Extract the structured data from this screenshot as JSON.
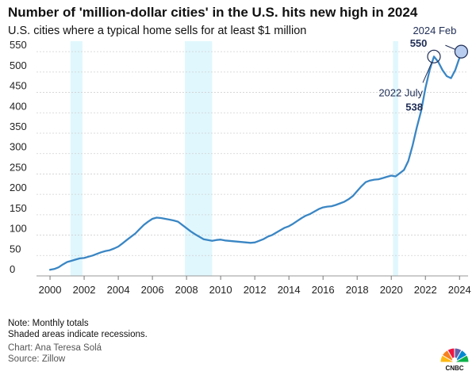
{
  "chart_data": {
    "type": "line",
    "title": "Number of 'million-dollar cities' in the U.S. hits new high in 2024",
    "subtitle": "U.S. cities where a typical home sells for at least $1 million",
    "xlabel": "",
    "ylabel": "",
    "x_tick_labels": [
      "2000",
      "2002",
      "2004",
      "2006",
      "2008",
      "2010",
      "2012",
      "2014",
      "2016",
      "2018",
      "2020",
      "2022",
      "2024"
    ],
    "y_tick_labels": [
      "0",
      "50",
      "100",
      "150",
      "200",
      "250",
      "300",
      "350",
      "400",
      "450",
      "500",
      "550"
    ],
    "xlim": [
      1999.3,
      2024.5
    ],
    "ylim": [
      0,
      560
    ],
    "grid": true,
    "line_color": "#3a86c4",
    "recession_color": "#e0f7fd",
    "recessions": [
      {
        "start": 2001.2,
        "end": 2001.9
      },
      {
        "start": 2007.9,
        "end": 2009.5
      },
      {
        "start": 2020.1,
        "end": 2020.4
      }
    ],
    "series": [
      {
        "name": "Million-dollar cities",
        "x": [
          2000.0,
          2000.25,
          2000.5,
          2000.75,
          2001.0,
          2001.25,
          2001.5,
          2001.75,
          2002.0,
          2002.25,
          2002.5,
          2002.75,
          2003.0,
          2003.25,
          2003.5,
          2003.75,
          2004.0,
          2004.25,
          2004.5,
          2004.75,
          2005.0,
          2005.25,
          2005.5,
          2005.75,
          2006.0,
          2006.25,
          2006.5,
          2006.75,
          2007.0,
          2007.25,
          2007.5,
          2007.75,
          2008.0,
          2008.25,
          2008.5,
          2008.75,
          2009.0,
          2009.25,
          2009.5,
          2009.75,
          2010.0,
          2010.25,
          2010.5,
          2010.75,
          2011.0,
          2011.25,
          2011.5,
          2011.75,
          2012.0,
          2012.25,
          2012.5,
          2012.75,
          2013.0,
          2013.25,
          2013.5,
          2013.75,
          2014.0,
          2014.25,
          2014.5,
          2014.75,
          2015.0,
          2015.25,
          2015.5,
          2015.75,
          2016.0,
          2016.25,
          2016.5,
          2016.75,
          2017.0,
          2017.25,
          2017.5,
          2017.75,
          2018.0,
          2018.25,
          2018.5,
          2018.75,
          2019.0,
          2019.25,
          2019.5,
          2019.75,
          2020.0,
          2020.25,
          2020.5,
          2020.75,
          2021.0,
          2021.25,
          2021.5,
          2021.75,
          2022.0,
          2022.25,
          2022.5,
          2022.75,
          2023.0,
          2023.25,
          2023.5,
          2023.75,
          2024.0,
          2024.1
        ],
        "values": [
          15,
          17,
          21,
          28,
          34,
          37,
          40,
          43,
          44,
          47,
          50,
          54,
          58,
          61,
          63,
          67,
          72,
          80,
          88,
          96,
          104,
          115,
          125,
          133,
          140,
          143,
          142,
          140,
          138,
          136,
          133,
          125,
          117,
          109,
          102,
          96,
          90,
          88,
          86,
          88,
          89,
          87,
          86,
          85,
          84,
          83,
          82,
          81,
          82,
          86,
          90,
          96,
          100,
          106,
          112,
          118,
          122,
          128,
          135,
          142,
          148,
          152,
          158,
          164,
          168,
          170,
          171,
          174,
          178,
          182,
          188,
          196,
          208,
          220,
          230,
          234,
          236,
          237,
          240,
          243,
          246,
          244,
          252,
          260,
          282,
          320,
          365,
          405,
          460,
          505,
          538,
          525,
          505,
          490,
          485,
          505,
          535,
          550
        ]
      }
    ],
    "annotations": [
      {
        "label": "2024 Feb",
        "value": "550",
        "x": 2024.1,
        "y": 550
      },
      {
        "label": "2022 July",
        "value": "538",
        "x": 2022.5,
        "y": 538
      }
    ]
  },
  "notes": {
    "line1": "Note: Monthly totals",
    "line2": "Shaded areas indicate recessions.",
    "credit": "Chart: Ana Teresa Solá",
    "source": "Source: Zillow"
  },
  "logo": {
    "name": "CNBC",
    "colors": [
      "#fdb913",
      "#f58220",
      "#ef1541",
      "#6460aa",
      "#0089d0",
      "#0db14b"
    ]
  }
}
